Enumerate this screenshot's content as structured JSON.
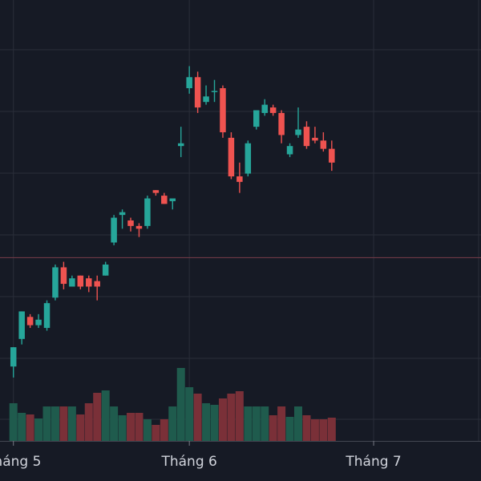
{
  "chart_data": {
    "type": "candlestick",
    "x_tick_labels": [
      {
        "label": "Tháng 5",
        "index": 0
      },
      {
        "label": "Tháng 6",
        "index": 21
      },
      {
        "label": "Tháng 7",
        "index": 43
      }
    ],
    "reference_price": 56.5,
    "grid": true,
    "colors": {
      "background": "#161a25",
      "grid": "#2a2e39",
      "up": "#26a69a",
      "down": "#ef5350",
      "volume_up": "#1f5b4d",
      "volume_down": "#7a3038",
      "reference_line": "#7a3d4a",
      "axis_text": "#d1d4dc"
    },
    "candles": [
      {
        "open": 17,
        "high": 24,
        "low": 13,
        "close": 24,
        "volume": 4.7
      },
      {
        "open": 27,
        "high": 37,
        "low": 25,
        "close": 37,
        "volume": 3.5
      },
      {
        "open": 35,
        "high": 36,
        "low": 31,
        "close": 32,
        "volume": 3.3
      },
      {
        "open": 32,
        "high": 36,
        "low": 31,
        "close": 34,
        "volume": 2.8
      },
      {
        "open": 31,
        "high": 41,
        "low": 30,
        "close": 40,
        "volume": 4.3
      },
      {
        "open": 42,
        "high": 54,
        "low": 41,
        "close": 53,
        "volume": 4.3
      },
      {
        "open": 53,
        "high": 55,
        "low": 45,
        "close": 47,
        "volume": 4.3
      },
      {
        "open": 46,
        "high": 50,
        "low": 46,
        "close": 49,
        "volume": 4.3
      },
      {
        "open": 50,
        "high": 50,
        "low": 45,
        "close": 46,
        "volume": 3.3
      },
      {
        "open": 49,
        "high": 50,
        "low": 44,
        "close": 46,
        "volume": 4.7
      },
      {
        "open": 48,
        "high": 50,
        "low": 41,
        "close": 46,
        "volume": 6.0
      },
      {
        "open": 50,
        "high": 55,
        "low": 50,
        "close": 54,
        "volume": 6.3
      },
      {
        "open": 62,
        "high": 72,
        "low": 61,
        "close": 71,
        "volume": 4.3
      },
      {
        "open": 72,
        "high": 74,
        "low": 67,
        "close": 73,
        "volume": 3.2
      },
      {
        "open": 70,
        "high": 71,
        "low": 66,
        "close": 68,
        "volume": 3.5
      },
      {
        "open": 68,
        "high": 69,
        "low": 64,
        "close": 67,
        "volume": 3.5
      },
      {
        "open": 68,
        "high": 79,
        "low": 67,
        "close": 78,
        "volume": 2.7
      },
      {
        "open": 81,
        "high": 81,
        "low": 79,
        "close": 80,
        "volume": 2.0
      },
      {
        "open": 79,
        "high": 80,
        "low": 76,
        "close": 76,
        "volume": 2.7
      },
      {
        "open": 77,
        "high": 78,
        "low": 74,
        "close": 78,
        "volume": 4.3
      },
      {
        "open": 97,
        "high": 104,
        "low": 93,
        "close": 98,
        "volume": 9.1
      },
      {
        "open": 118,
        "high": 126,
        "low": 116,
        "close": 122,
        "volume": 6.7
      },
      {
        "open": 122,
        "high": 124,
        "low": 109,
        "close": 111,
        "volume": 5.9
      },
      {
        "open": 113,
        "high": 119,
        "low": 112,
        "close": 115,
        "volume": 4.7
      },
      {
        "open": 117,
        "high": 121,
        "low": 113,
        "close": 117,
        "volume": 4.5
      },
      {
        "open": 118,
        "high": 119,
        "low": 100,
        "close": 102,
        "volume": 5.3
      },
      {
        "open": 100,
        "high": 102,
        "low": 85,
        "close": 86,
        "volume": 5.9
      },
      {
        "open": 86,
        "high": 91,
        "low": 80,
        "close": 84,
        "volume": 6.2
      },
      {
        "open": 87,
        "high": 99,
        "low": 86,
        "close": 98,
        "volume": 4.3
      },
      {
        "open": 104,
        "high": 110,
        "low": 103,
        "close": 110,
        "volume": 4.3
      },
      {
        "open": 109,
        "high": 114,
        "low": 108,
        "close": 112,
        "volume": 4.3
      },
      {
        "open": 111,
        "high": 112,
        "low": 108,
        "close": 109,
        "volume": 3.2
      },
      {
        "open": 109,
        "high": 110,
        "low": 98,
        "close": 101,
        "volume": 4.3
      },
      {
        "open": 94,
        "high": 98,
        "low": 93,
        "close": 97,
        "volume": 3.0
      },
      {
        "open": 101,
        "high": 111,
        "low": 100,
        "close": 103,
        "volume": 4.3
      },
      {
        "open": 104,
        "high": 106,
        "low": 96,
        "close": 97,
        "volume": 3.2
      },
      {
        "open": 100,
        "high": 104,
        "low": 98,
        "close": 99,
        "volume": 2.7
      },
      {
        "open": 99,
        "high": 102,
        "low": 95,
        "close": 96,
        "volume": 2.7
      },
      {
        "open": 96,
        "high": 99,
        "low": 88,
        "close": 91,
        "volume": 2.9
      }
    ],
    "price_range": [
      -10,
      150
    ],
    "volume_range": [
      0,
      14
    ],
    "x_index_range": [
      0,
      50
    ]
  }
}
